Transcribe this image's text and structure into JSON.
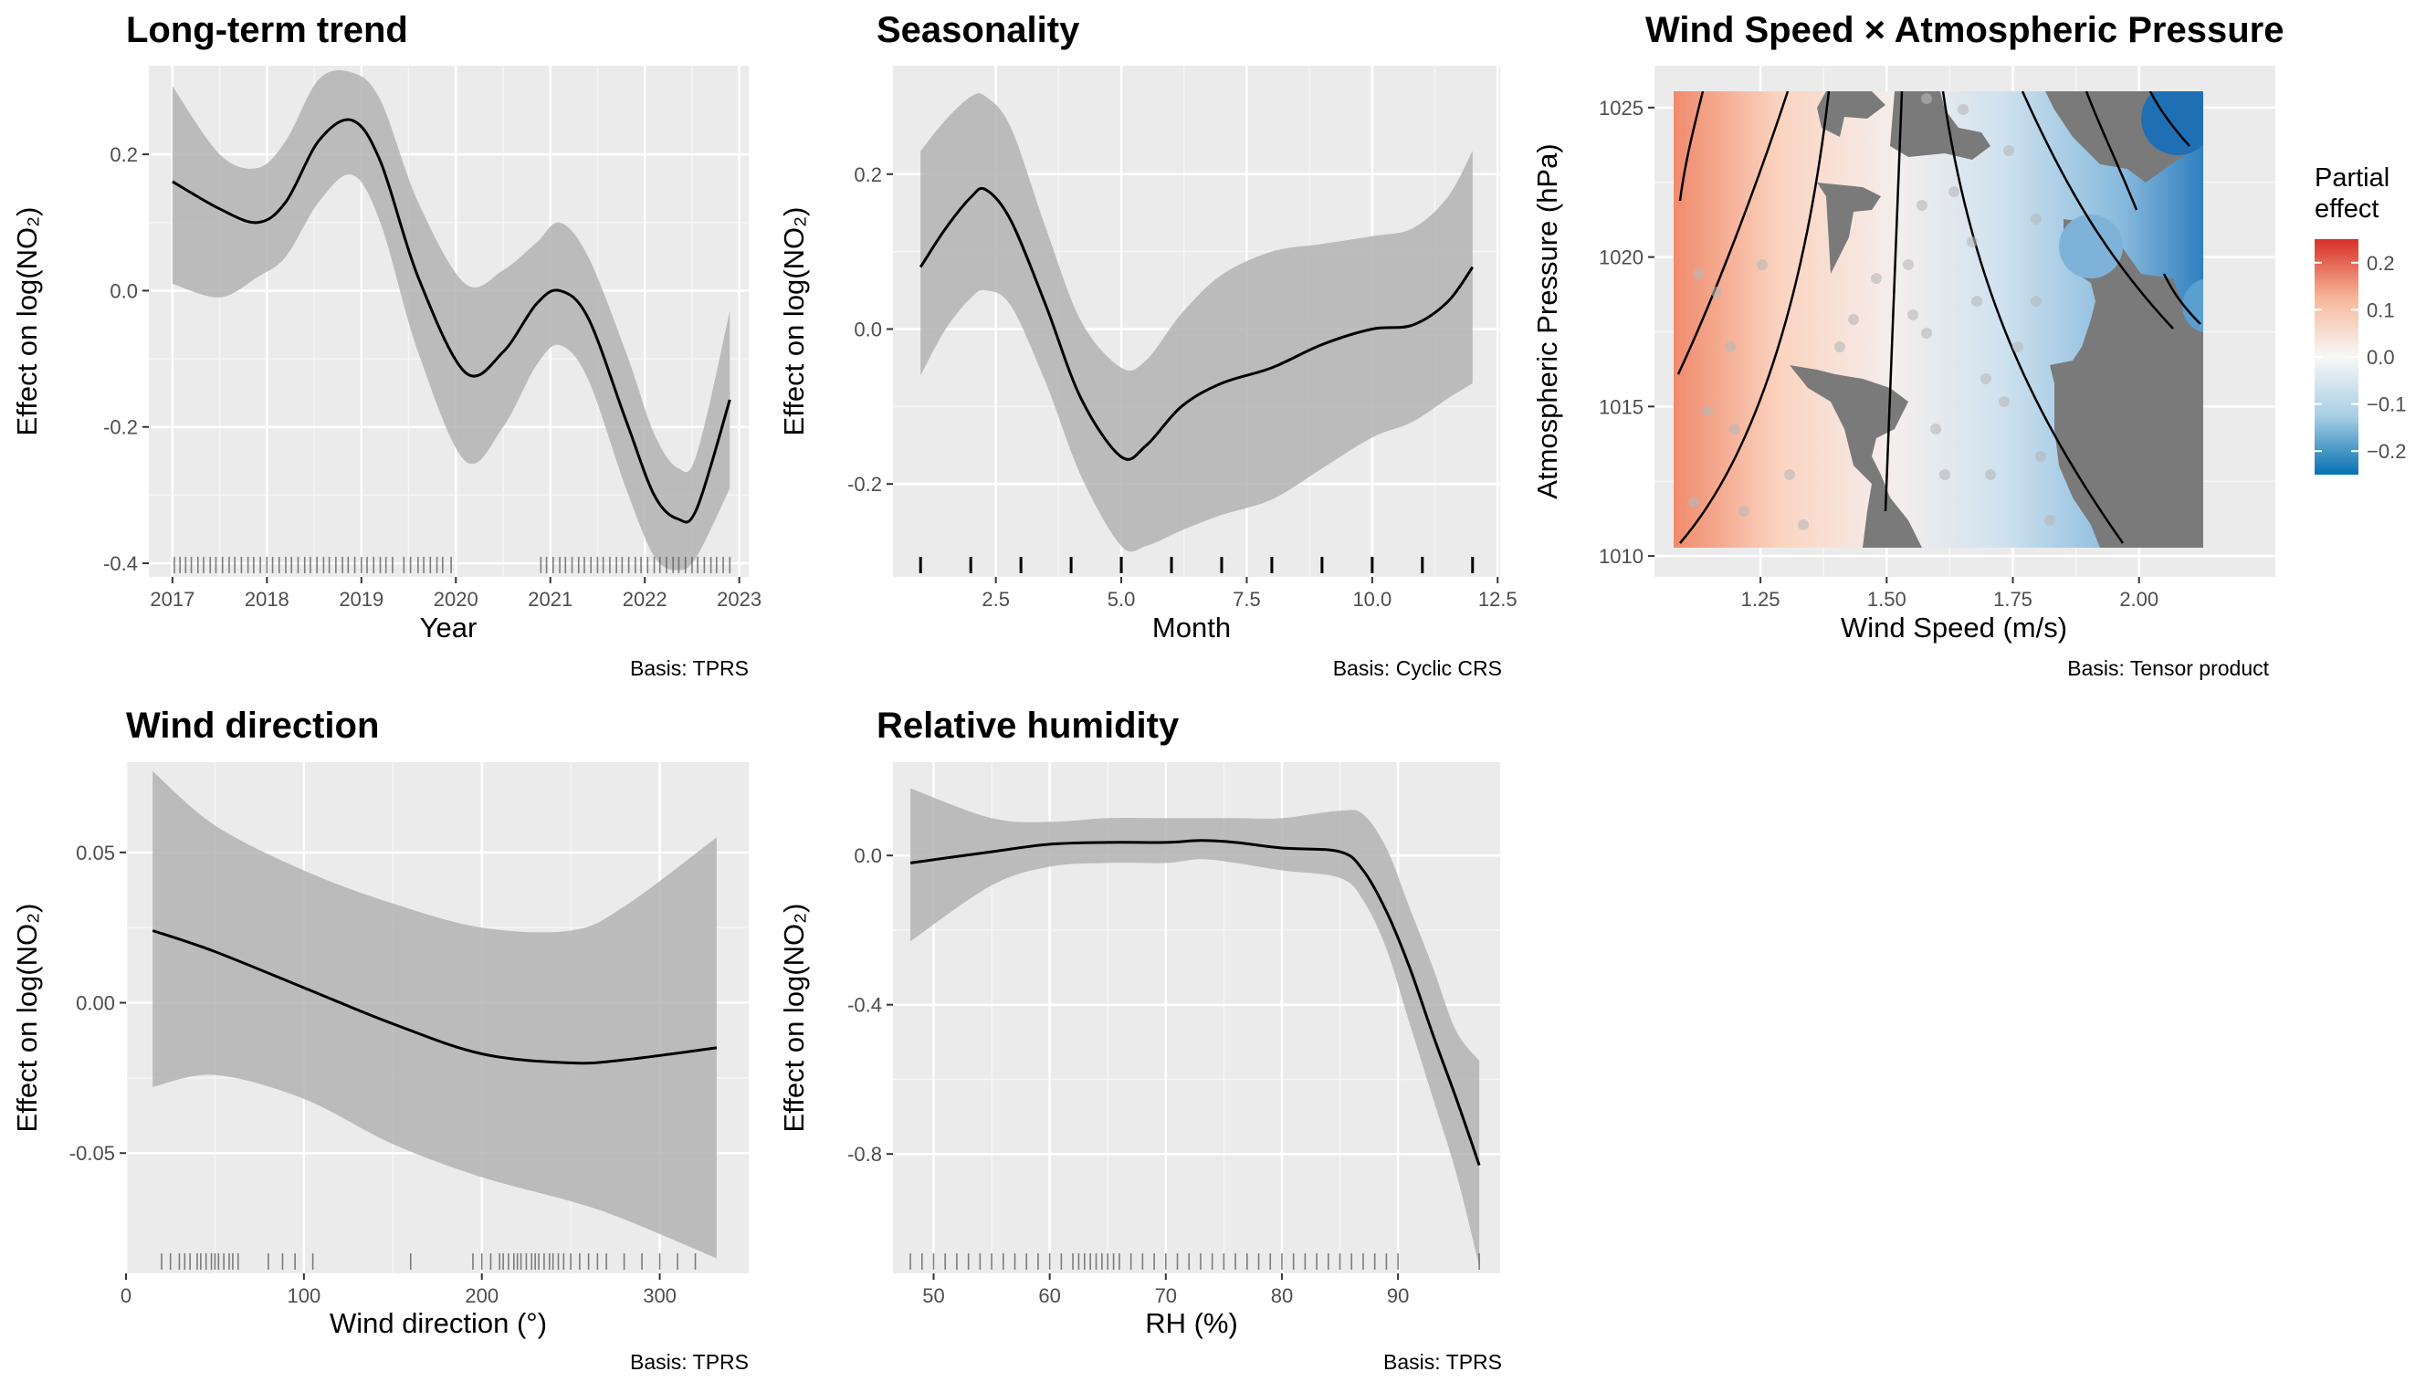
{
  "chart_data": [
    {
      "id": "trend",
      "type": "line",
      "title": "Long-term trend",
      "xlabel": "Year",
      "ylabel": "Effect on log(NO₂)",
      "footnote": "Basis: TPRS",
      "xlim": [
        2016.75,
        2023.1
      ],
      "ylim": [
        -0.42,
        0.33
      ],
      "xticks": [
        2017,
        2018,
        2019,
        2020,
        2021,
        2022,
        2023
      ],
      "xtick_labels": [
        "2017",
        "2018",
        "2019",
        "2020",
        "2021",
        "2022",
        "2023"
      ],
      "yticks": [
        0.2,
        0.0,
        -0.2,
        -0.4
      ],
      "ytick_labels": [
        "0.2",
        "0.0",
        "-0.2",
        "-0.4"
      ],
      "series": [
        {
          "x": [
            2017.0,
            2017.5,
            2017.9,
            2018.2,
            2018.55,
            2018.9,
            2019.2,
            2019.6,
            2020.1,
            2020.5,
            2020.85,
            2021.1,
            2021.4,
            2021.8,
            2022.1,
            2022.35,
            2022.55,
            2022.9
          ],
          "y": [
            0.16,
            0.12,
            0.1,
            0.13,
            0.22,
            0.25,
            0.19,
            0.02,
            -0.12,
            -0.09,
            -0.02,
            0.0,
            -0.04,
            -0.19,
            -0.3,
            -0.335,
            -0.32,
            -0.16
          ],
          "lower": [
            0.01,
            -0.01,
            0.02,
            0.05,
            0.13,
            0.17,
            0.1,
            -0.09,
            -0.25,
            -0.2,
            -0.11,
            -0.08,
            -0.13,
            -0.29,
            -0.39,
            -0.41,
            -0.39,
            -0.29
          ],
          "upper": [
            0.3,
            0.2,
            0.18,
            0.22,
            0.31,
            0.32,
            0.28,
            0.13,
            0.01,
            0.03,
            0.07,
            0.1,
            0.05,
            -0.09,
            -0.21,
            -0.26,
            -0.24,
            -0.03
          ]
        }
      ],
      "rug": [
        2017.02,
        2017.08,
        2017.14,
        2017.2,
        2017.27,
        2017.33,
        2017.4,
        2017.46,
        2017.53,
        2017.6,
        2017.66,
        2017.73,
        2017.8,
        2017.86,
        2017.93,
        2018.0,
        2018.06,
        2018.13,
        2018.2,
        2018.26,
        2018.33,
        2018.4,
        2018.46,
        2018.53,
        2018.6,
        2018.66,
        2018.73,
        2018.8,
        2018.86,
        2018.93,
        2019.0,
        2019.06,
        2019.13,
        2019.2,
        2019.26,
        2019.33,
        2019.45,
        2019.52,
        2019.6,
        2019.66,
        2019.73,
        2019.8,
        2019.86,
        2019.95,
        2020.9,
        2020.96,
        2021.03,
        2021.1,
        2021.16,
        2021.23,
        2021.3,
        2021.36,
        2021.43,
        2021.5,
        2021.56,
        2021.63,
        2021.7,
        2021.76,
        2021.83,
        2021.9,
        2021.96,
        2022.03,
        2022.1,
        2022.16,
        2022.23,
        2022.3,
        2022.36,
        2022.43,
        2022.5,
        2022.56,
        2022.63,
        2022.7,
        2022.76,
        2022.83,
        2022.9
      ]
    },
    {
      "id": "season",
      "type": "line",
      "title": "Seasonality",
      "xlabel": "Month",
      "ylabel": "Effect on log(NO₂)",
      "footnote": "Basis: Cyclic CRS",
      "xlim": [
        0.45,
        12.55
      ],
      "ylim": [
        -0.32,
        0.34
      ],
      "xticks": [
        2.5,
        5.0,
        7.5,
        10.0,
        12.5
      ],
      "xtick_labels": [
        "2.5",
        "5.0",
        "7.5",
        "10.0",
        "12.5"
      ],
      "yticks": [
        0.2,
        0.0,
        -0.2
      ],
      "ytick_labels": [
        "0.2",
        "0.0",
        "-0.2"
      ],
      "series": [
        {
          "x": [
            1.0,
            1.5,
            2.0,
            2.3,
            2.8,
            3.5,
            4.2,
            5.0,
            5.5,
            6.2,
            7.0,
            8.0,
            9.0,
            10.0,
            10.8,
            11.5,
            12.0
          ],
          "y": [
            0.08,
            0.13,
            0.17,
            0.18,
            0.14,
            0.03,
            -0.09,
            -0.165,
            -0.15,
            -0.1,
            -0.07,
            -0.05,
            -0.02,
            0.0,
            0.005,
            0.035,
            0.08
          ],
          "lower": [
            -0.06,
            0.0,
            0.04,
            0.05,
            0.03,
            -0.07,
            -0.19,
            -0.28,
            -0.28,
            -0.26,
            -0.24,
            -0.22,
            -0.18,
            -0.14,
            -0.12,
            -0.09,
            -0.07
          ],
          "upper": [
            0.23,
            0.27,
            0.3,
            0.3,
            0.26,
            0.13,
            0.01,
            -0.05,
            -0.04,
            0.02,
            0.07,
            0.1,
            0.11,
            0.12,
            0.13,
            0.17,
            0.23
          ]
        }
      ],
      "rug": [
        1,
        2,
        3,
        4,
        5,
        6,
        7,
        8,
        9,
        10,
        11,
        12
      ]
    },
    {
      "id": "wind_pressure",
      "type": "heatmap",
      "title": "Wind Speed × Atmospheric Pressure",
      "xlabel": "Wind Speed (m/s)",
      "ylabel": "Atmospheric Pressure (hPa)",
      "footnote": "Basis: Tensor product",
      "xlim": [
        1.04,
        2.27
      ],
      "ylim": [
        1009.3,
        1026.4
      ],
      "xticks": [
        1.25,
        1.5,
        1.75,
        2.0
      ],
      "xtick_labels": [
        "1.25",
        "1.50",
        "1.75",
        "2.00"
      ],
      "yticks": [
        1025,
        1020,
        1015,
        1010
      ],
      "ytick_labels": [
        "1025",
        "1020",
        "1015",
        "1010"
      ],
      "surface": {
        "x_range": [
          1.09,
          2.17
        ],
        "y_range": [
          1009.7,
          1025.5
        ],
        "min": -0.25,
        "max": 0.25,
        "effect_at_x": [
          [
            1.09,
            0.25
          ],
          [
            1.3,
            0.1
          ],
          [
            1.55,
            0.0
          ],
          [
            1.75,
            -0.08
          ],
          [
            2.17,
            -0.25
          ]
        ]
      },
      "legend": {
        "title": "Partial effect",
        "position": "right",
        "ticks": [
          0.2,
          0.1,
          0.0,
          -0.1,
          -0.2
        ],
        "tick_labels": [
          "0.2",
          "0.1",
          "0.0",
          "−0.1",
          "−0.2"
        ],
        "colors": [
          "#d73027",
          "#f7b79a",
          "#f7f7f7",
          "#a9cfe5",
          "#0571b0"
        ]
      }
    },
    {
      "id": "wind_dir",
      "type": "line",
      "title": "Wind direction",
      "xlabel": "Wind direction (°)",
      "ylabel": "Effect on log(NO₂)",
      "footnote": "Basis: TPRS",
      "xlim": [
        0,
        350
      ],
      "ylim": [
        -0.09,
        0.08
      ],
      "xticks": [
        0,
        100,
        200,
        300
      ],
      "xtick_labels": [
        "0",
        "100",
        "200",
        "300"
      ],
      "yticks": [
        0.05,
        0.0,
        -0.05
      ],
      "ytick_labels": [
        "0.05",
        "0.00",
        "-0.05"
      ],
      "series": [
        {
          "x": [
            15,
            50,
            100,
            150,
            200,
            250,
            280,
            332
          ],
          "y": [
            0.024,
            0.017,
            0.005,
            -0.007,
            -0.017,
            -0.02,
            -0.019,
            -0.015
          ],
          "lower": [
            -0.028,
            -0.024,
            -0.032,
            -0.047,
            -0.058,
            -0.066,
            -0.072,
            -0.085
          ],
          "upper": [
            0.077,
            0.059,
            0.044,
            0.033,
            0.025,
            0.024,
            0.032,
            0.055
          ]
        }
      ],
      "rug": [
        20,
        25,
        30,
        33,
        36,
        40,
        42,
        45,
        48,
        50,
        52,
        55,
        58,
        60,
        63,
        80,
        88,
        95,
        105,
        160,
        195,
        200,
        205,
        210,
        212,
        215,
        218,
        220,
        222,
        225,
        228,
        230,
        232,
        235,
        238,
        240,
        243,
        246,
        250,
        255,
        260,
        265,
        270,
        280,
        290,
        300,
        310,
        320
      ]
    },
    {
      "id": "rh",
      "type": "line",
      "title": "Relative humidity",
      "xlabel": "RH (%)",
      "ylabel": "Effect on log(NO₂)",
      "footnote": "Basis: TPRS",
      "xlim": [
        46.5,
        98.8
      ],
      "ylim": [
        -1.12,
        0.25
      ],
      "xticks": [
        50,
        60,
        70,
        80,
        90
      ],
      "xtick_labels": [
        "50",
        "60",
        "70",
        "80",
        "90"
      ],
      "yticks": [
        0.0,
        -0.4,
        -0.8
      ],
      "ytick_labels": [
        "0.0",
        "-0.4",
        "-0.8"
      ],
      "series": [
        {
          "x": [
            48,
            55,
            60,
            65,
            70,
            73,
            76,
            80,
            85,
            87,
            89,
            91,
            93,
            95,
            97
          ],
          "y": [
            -0.02,
            0.01,
            0.03,
            0.035,
            0.035,
            0.04,
            0.035,
            0.02,
            0.01,
            -0.04,
            -0.15,
            -0.3,
            -0.48,
            -0.65,
            -0.83
          ],
          "lower": [
            -0.23,
            -0.08,
            -0.03,
            -0.02,
            -0.02,
            -0.01,
            -0.02,
            -0.04,
            -0.06,
            -0.12,
            -0.25,
            -0.45,
            -0.65,
            -0.85,
            -1.1
          ],
          "upper": [
            0.18,
            0.1,
            0.09,
            0.1,
            0.1,
            0.1,
            0.1,
            0.1,
            0.12,
            0.11,
            0.02,
            -0.14,
            -0.3,
            -0.47,
            -0.55
          ]
        }
      ],
      "rug": [
        48,
        49,
        50,
        51,
        52,
        53,
        54,
        55,
        56,
        57,
        58,
        59,
        60,
        61,
        62,
        62.5,
        63,
        63.5,
        64,
        64.5,
        65,
        65.5,
        66,
        67,
        68,
        69,
        70,
        71,
        72,
        73,
        74,
        75,
        76,
        77,
        78,
        79,
        80,
        81,
        82,
        83,
        84,
        85,
        86,
        87,
        88,
        89,
        90,
        97
      ]
    }
  ]
}
